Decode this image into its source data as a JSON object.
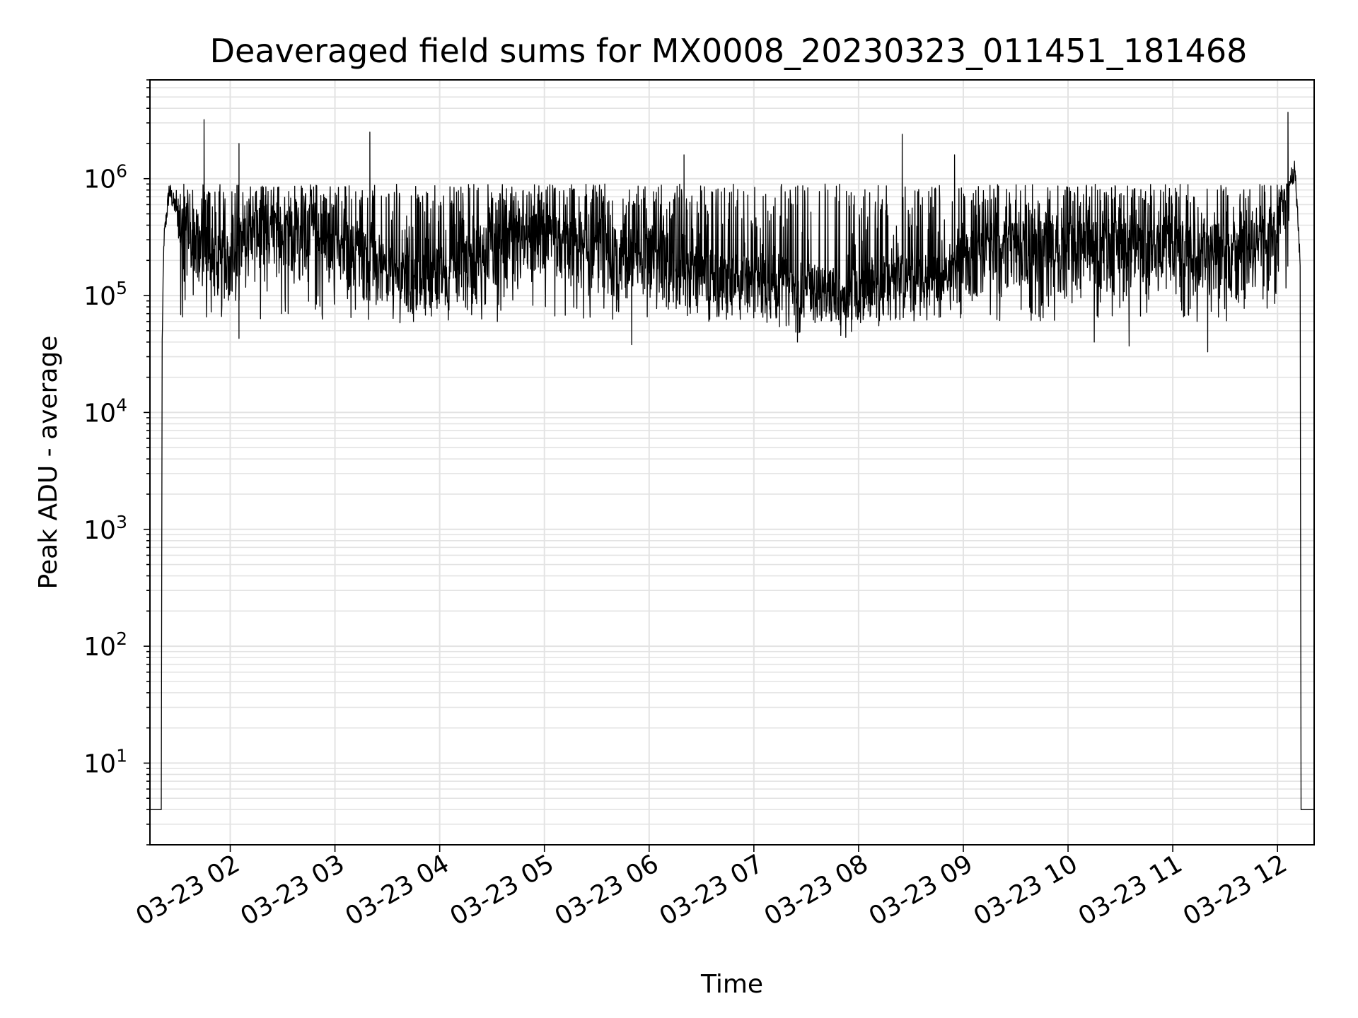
{
  "chart_data": {
    "type": "line",
    "title": "Deaveraged field sums for MX0008_20230323_011451_181468",
    "xlabel": "Time",
    "ylabel": "Peak ADU - average",
    "yscale": "log",
    "ylim": [
      2,
      7000000
    ],
    "xlim": [
      "03-23 01:14",
      "03-23 12:21"
    ],
    "grid": true,
    "legend": "none",
    "line_color": "#000000",
    "x_ticks": [
      "03-23 02",
      "03-23 03",
      "03-23 04",
      "03-23 05",
      "03-23 06",
      "03-23 07",
      "03-23 08",
      "03-23 09",
      "03-23 10",
      "03-23 11",
      "03-23 12"
    ],
    "y_ticks": [
      {
        "value": 10,
        "base": "10",
        "exp": "1"
      },
      {
        "value": 100,
        "base": "10",
        "exp": "2"
      },
      {
        "value": 1000,
        "base": "10",
        "exp": "3"
      },
      {
        "value": 10000,
        "base": "10",
        "exp": "4"
      },
      {
        "value": 100000,
        "base": "10",
        "exp": "5"
      },
      {
        "value": 1000000,
        "base": "10",
        "exp": "6"
      }
    ],
    "series": [
      {
        "x": [
          "03-23 01:14",
          "03-23 01:20",
          "03-23 01:21",
          "03-23 01:22",
          "03-23 01:25",
          "03-23 01:30",
          "03-23 01:40",
          "03-23 01:50",
          "03-23 02:00",
          "03-23 02:15",
          "03-23 02:30",
          "03-23 02:45",
          "03-23 03:00",
          "03-23 03:15",
          "03-23 03:30",
          "03-23 03:45",
          "03-23 04:00",
          "03-23 04:15",
          "03-23 04:30",
          "03-23 04:45",
          "03-23 05:00",
          "03-23 05:15",
          "03-23 05:30",
          "03-23 05:45",
          "03-23 06:00",
          "03-23 06:15",
          "03-23 06:30",
          "03-23 06:45",
          "03-23 07:00",
          "03-23 07:15",
          "03-23 07:30",
          "03-23 07:45",
          "03-23 08:00",
          "03-23 08:15",
          "03-23 08:30",
          "03-23 08:45",
          "03-23 09:00",
          "03-23 09:15",
          "03-23 09:30",
          "03-23 09:45",
          "03-23 10:00",
          "03-23 10:15",
          "03-23 10:30",
          "03-23 10:45",
          "03-23 11:00",
          "03-23 11:15",
          "03-23 11:30",
          "03-23 11:45",
          "03-23 12:00",
          "03-23 12:05",
          "03-23 12:10",
          "03-23 12:13",
          "03-23 12:14",
          "03-23 12:21"
        ],
        "y": [
          4,
          4,
          40000,
          300000,
          800000,
          500000,
          350000,
          250000,
          250000,
          400000,
          450000,
          450000,
          350000,
          250000,
          180000,
          150000,
          180000,
          250000,
          300000,
          350000,
          350000,
          300000,
          300000,
          250000,
          280000,
          200000,
          180000,
          150000,
          170000,
          150000,
          130000,
          120000,
          130000,
          150000,
          160000,
          150000,
          250000,
          300000,
          300000,
          300000,
          300000,
          300000,
          300000,
          300000,
          300000,
          300000,
          300000,
          300000,
          400000,
          900000,
          1200000,
          200000,
          4,
          4
        ],
        "peaks": [
          {
            "x": "03-23 01:45",
            "y": 3200000
          },
          {
            "x": "03-23 02:05",
            "y": 2000000
          },
          {
            "x": "03-23 03:20",
            "y": 2500000
          },
          {
            "x": "03-23 06:20",
            "y": 1600000
          },
          {
            "x": "03-23 08:25",
            "y": 2400000
          },
          {
            "x": "03-23 08:55",
            "y": 1600000
          },
          {
            "x": "03-23 12:06",
            "y": 3700000
          }
        ],
        "troughs": [
          {
            "x": "03-23 02:05",
            "y": 43000
          },
          {
            "x": "03-23 05:50",
            "y": 38000
          },
          {
            "x": "03-23 07:25",
            "y": 40000
          },
          {
            "x": "03-23 10:15",
            "y": 40000
          },
          {
            "x": "03-23 10:35",
            "y": 37000
          },
          {
            "x": "03-23 11:20",
            "y": 33000
          }
        ],
        "noise_band_low": 60000,
        "noise_band_high": 900000
      }
    ]
  }
}
